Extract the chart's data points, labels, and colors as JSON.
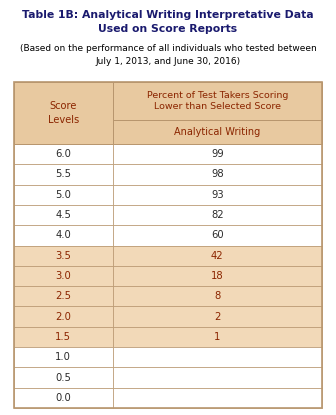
{
  "title_bold": "Table 1B: Analytical Writing Interpretative Data\nUsed on Score Reports",
  "subtitle": "(Based on the performance of all individuals who tested between\nJuly 1, 2013, and June 30, 2016)",
  "col_header_top": "Percent of Test Takers Scoring\nLower than Selected Score",
  "col_header_bottom": "Analytical Writing",
  "row_header": "Score\nLevels",
  "score_levels": [
    "6.0",
    "5.5",
    "5.0",
    "4.5",
    "4.0",
    "3.5",
    "3.0",
    "2.5",
    "2.0",
    "1.5",
    "1.0",
    "0.5",
    "0.0"
  ],
  "percentiles": [
    "99",
    "98",
    "93",
    "82",
    "60",
    "42",
    "18",
    "8",
    "2",
    "1",
    "",
    "",
    ""
  ],
  "shaded_rows": [
    5,
    6,
    7,
    8,
    9
  ],
  "bg_color": "#ffffff",
  "header_bg": "#e8c9a0",
  "shaded_bg": "#f2d9b8",
  "border_color": "#b8966e",
  "title_color": "#1a1a6e",
  "subtitle_color": "#000000",
  "data_text_color": "#2b2b2b",
  "header_text_color": "#8B2500",
  "shaded_text_color": "#8B2500",
  "title_fontsize": 7.8,
  "subtitle_fontsize": 6.5,
  "header_fontsize": 6.8,
  "data_fontsize": 7.2
}
